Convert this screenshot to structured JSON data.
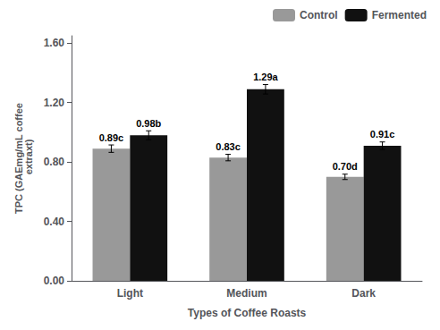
{
  "chart_data": {
    "type": "bar",
    "categories": [
      "Light",
      "Medium",
      "Dark"
    ],
    "series": [
      {
        "name": "Control",
        "color": "#999999",
        "values": [
          0.89,
          0.83,
          0.7
        ],
        "errors": [
          0.025,
          0.022,
          0.018
        ],
        "value_labels": [
          "0.89c",
          "0.83c",
          "0.70d"
        ]
      },
      {
        "name": "Fermented",
        "color": "#111111",
        "values": [
          0.98,
          1.29,
          0.91
        ],
        "errors": [
          0.03,
          0.032,
          0.025
        ],
        "value_labels": [
          "0.98b",
          "1.29a",
          "0.91c"
        ]
      }
    ],
    "xlabel": "Types of Coffee Roasts",
    "ylabel": "TPC (GAEmg/mL coffee\n extraxt)",
    "ylim": [
      0.0,
      1.65
    ],
    "yticks": [
      {
        "value": 0.0,
        "label": "0.00"
      },
      {
        "value": 0.4,
        "label": "0.40"
      },
      {
        "value": 0.8,
        "label": "0.80"
      },
      {
        "value": 1.2,
        "label": "1.20"
      },
      {
        "value": 1.6,
        "label": "1.60"
      }
    ],
    "legend": "upper right",
    "grid": false
  }
}
